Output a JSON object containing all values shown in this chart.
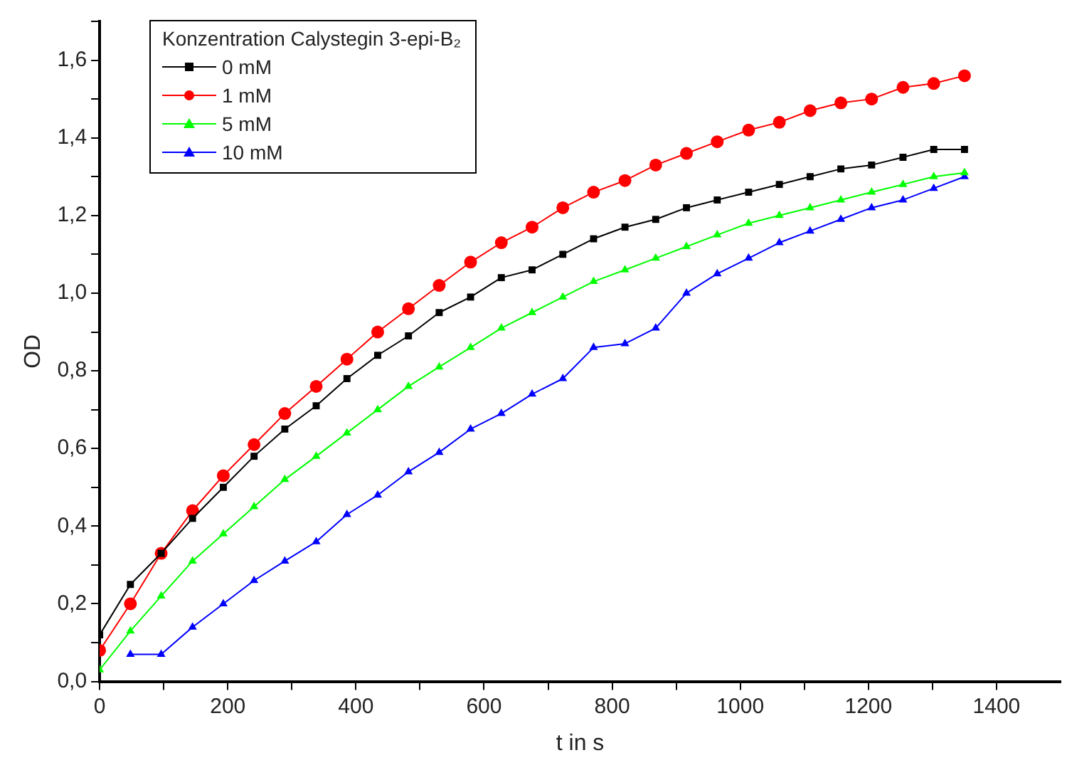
{
  "chart_data": {
    "type": "line",
    "xlabel": "t in s",
    "ylabel": "OD",
    "legend_title": "Konzentration Calystegin 3-epi-B₂",
    "legend": "top left",
    "grid": false,
    "line_style": "solid",
    "x": [
      0,
      48,
      96,
      145,
      193,
      241,
      289,
      338,
      386,
      434,
      482,
      530,
      579,
      627,
      675,
      723,
      771,
      820,
      868,
      916,
      964,
      1013,
      1061,
      1109,
      1157,
      1205,
      1254,
      1302,
      1350
    ],
    "xlim": [
      0,
      1500
    ],
    "xticks": [
      0,
      {
        "value": 100,
        "label": null
      },
      200,
      {
        "value": 300,
        "label": null
      },
      400,
      {
        "value": 500,
        "label": null
      },
      600,
      {
        "value": 700,
        "label": null
      },
      800,
      {
        "value": 900,
        "label": null
      },
      1000,
      {
        "value": 1100,
        "label": null
      },
      1200,
      {
        "value": 1300,
        "label": null
      },
      1400
    ],
    "ylim": [
      0,
      1.7
    ],
    "yticks": [
      {
        "value": 0,
        "label": "0,0"
      },
      {
        "value": 0.1,
        "label": null
      },
      {
        "value": 0.2,
        "label": "0,2"
      },
      {
        "value": 0.3,
        "label": null
      },
      {
        "value": 0.4,
        "label": "0,4"
      },
      {
        "value": 0.5,
        "label": null
      },
      {
        "value": 0.6,
        "label": "0,6"
      },
      {
        "value": 0.7,
        "label": null
      },
      {
        "value": 0.8,
        "label": "0,8"
      },
      {
        "value": 0.9,
        "label": null
      },
      {
        "value": 1.0,
        "label": "1,0"
      },
      {
        "value": 1.1,
        "label": null
      },
      {
        "value": 1.2,
        "label": "1,2"
      },
      {
        "value": 1.3,
        "label": null
      },
      {
        "value": 1.4,
        "label": "1,4"
      },
      {
        "value": 1.5,
        "label": null
      },
      {
        "value": 1.6,
        "label": "1,6"
      },
      {
        "value": 1.7,
        "label": null
      }
    ],
    "series": [
      {
        "name": "0 mM",
        "color": "#000000",
        "marker": "square",
        "values": [
          0.12,
          0.25,
          0.33,
          0.42,
          0.5,
          0.58,
          0.65,
          0.71,
          0.78,
          0.84,
          0.89,
          0.95,
          0.99,
          1.04,
          1.06,
          1.1,
          1.14,
          1.17,
          1.19,
          1.22,
          1.24,
          1.26,
          1.28,
          1.3,
          1.32,
          1.33,
          1.35,
          1.37,
          1.37
        ]
      },
      {
        "name": "1 mM",
        "color": "#ff0000",
        "marker": "circle",
        "values": [
          0.08,
          0.2,
          0.33,
          0.44,
          0.53,
          0.61,
          0.69,
          0.76,
          0.83,
          0.9,
          0.96,
          1.02,
          1.08,
          1.13,
          1.17,
          1.22,
          1.26,
          1.29,
          1.33,
          1.36,
          1.39,
          1.42,
          1.44,
          1.47,
          1.49,
          1.5,
          1.53,
          1.54,
          1.56
        ]
      },
      {
        "name": "5 mM",
        "color": "#00ff00",
        "marker": "triangle",
        "values": [
          0.03,
          0.13,
          0.22,
          0.31,
          0.38,
          0.45,
          0.52,
          0.58,
          0.64,
          0.7,
          0.76,
          0.81,
          0.86,
          0.91,
          0.95,
          0.99,
          1.03,
          1.06,
          1.09,
          1.12,
          1.15,
          1.18,
          1.2,
          1.22,
          1.24,
          1.26,
          1.28,
          1.3,
          1.31
        ]
      },
      {
        "name": "10 mM",
        "color": "#0000ff",
        "marker": "triangle",
        "values": [
          null,
          0.07,
          0.07,
          0.14,
          0.2,
          0.26,
          0.31,
          0.36,
          0.43,
          0.48,
          0.54,
          0.59,
          0.65,
          0.69,
          0.74,
          0.78,
          0.86,
          0.87,
          0.91,
          1.0,
          1.05,
          1.09,
          1.13,
          1.16,
          1.19,
          1.22,
          1.24,
          1.27,
          1.3
        ]
      }
    ]
  }
}
